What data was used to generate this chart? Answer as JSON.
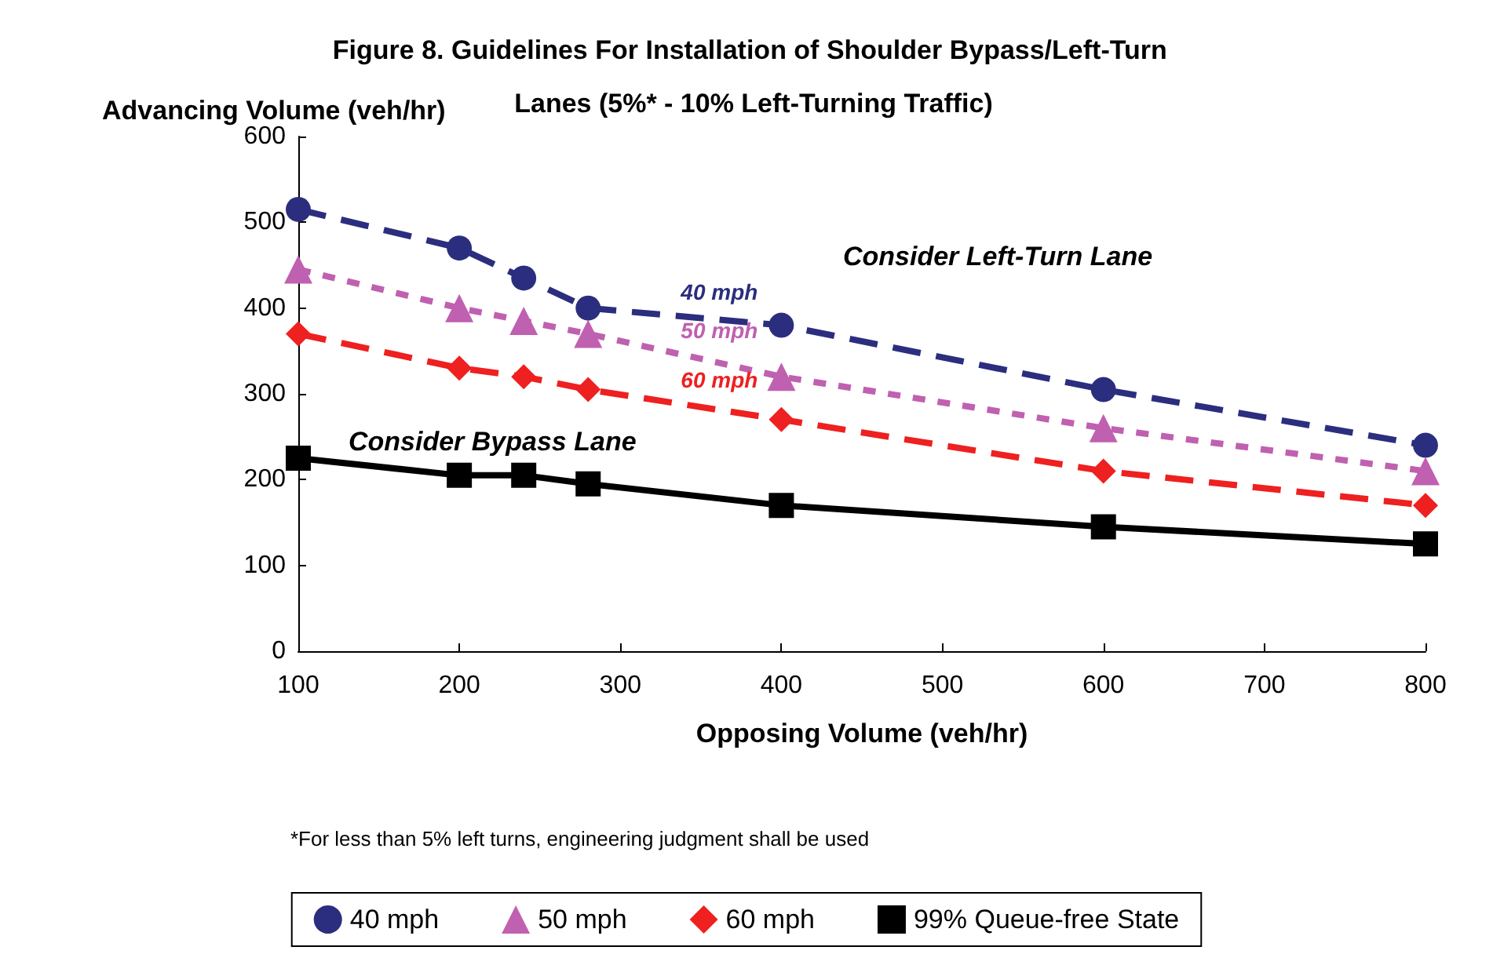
{
  "chart_data": {
    "type": "line",
    "title": "Figure 8. Guidelines For Installation of Shoulder Bypass/Left-Turn Lanes (5%* - 10% Left-Turning Traffic)",
    "xlabel": "Opposing Volume (veh/hr)",
    "ylabel": "Advancing Volume (veh/hr)",
    "x": [
      100,
      200,
      240,
      280,
      400,
      600,
      800
    ],
    "series": [
      {
        "name": "40 mph",
        "color": "#2b2e7e",
        "marker": "circle",
        "line_style": "dashed",
        "values": [
          515,
          470,
          435,
          400,
          380,
          305,
          240
        ]
      },
      {
        "name": "50 mph",
        "color": "#c060b0",
        "marker": "triangle",
        "line_style": "dotted",
        "values": [
          445,
          400,
          385,
          370,
          320,
          260,
          210
        ]
      },
      {
        "name": "60 mph",
        "color": "#ee2020",
        "marker": "diamond",
        "line_style": "dashed",
        "values": [
          370,
          330,
          320,
          305,
          270,
          210,
          170
        ]
      },
      {
        "name": "99% Queue-free State",
        "color": "#000000",
        "marker": "square",
        "line_style": "solid",
        "values": [
          225,
          205,
          205,
          195,
          170,
          145,
          125
        ]
      }
    ],
    "xlim": [
      100,
      800
    ],
    "xticks": [
      100,
      200,
      300,
      400,
      500,
      600,
      700,
      800
    ],
    "ylim": [
      0,
      600
    ],
    "yticks": [
      0,
      100,
      200,
      300,
      400,
      500,
      600
    ],
    "grid": false,
    "legend": "bottom",
    "annotations": [
      "Consider Left-Turn Lane",
      "Consider Bypass Lane",
      "*For less than 5% left turns, engineering judgment shall be used"
    ]
  }
}
